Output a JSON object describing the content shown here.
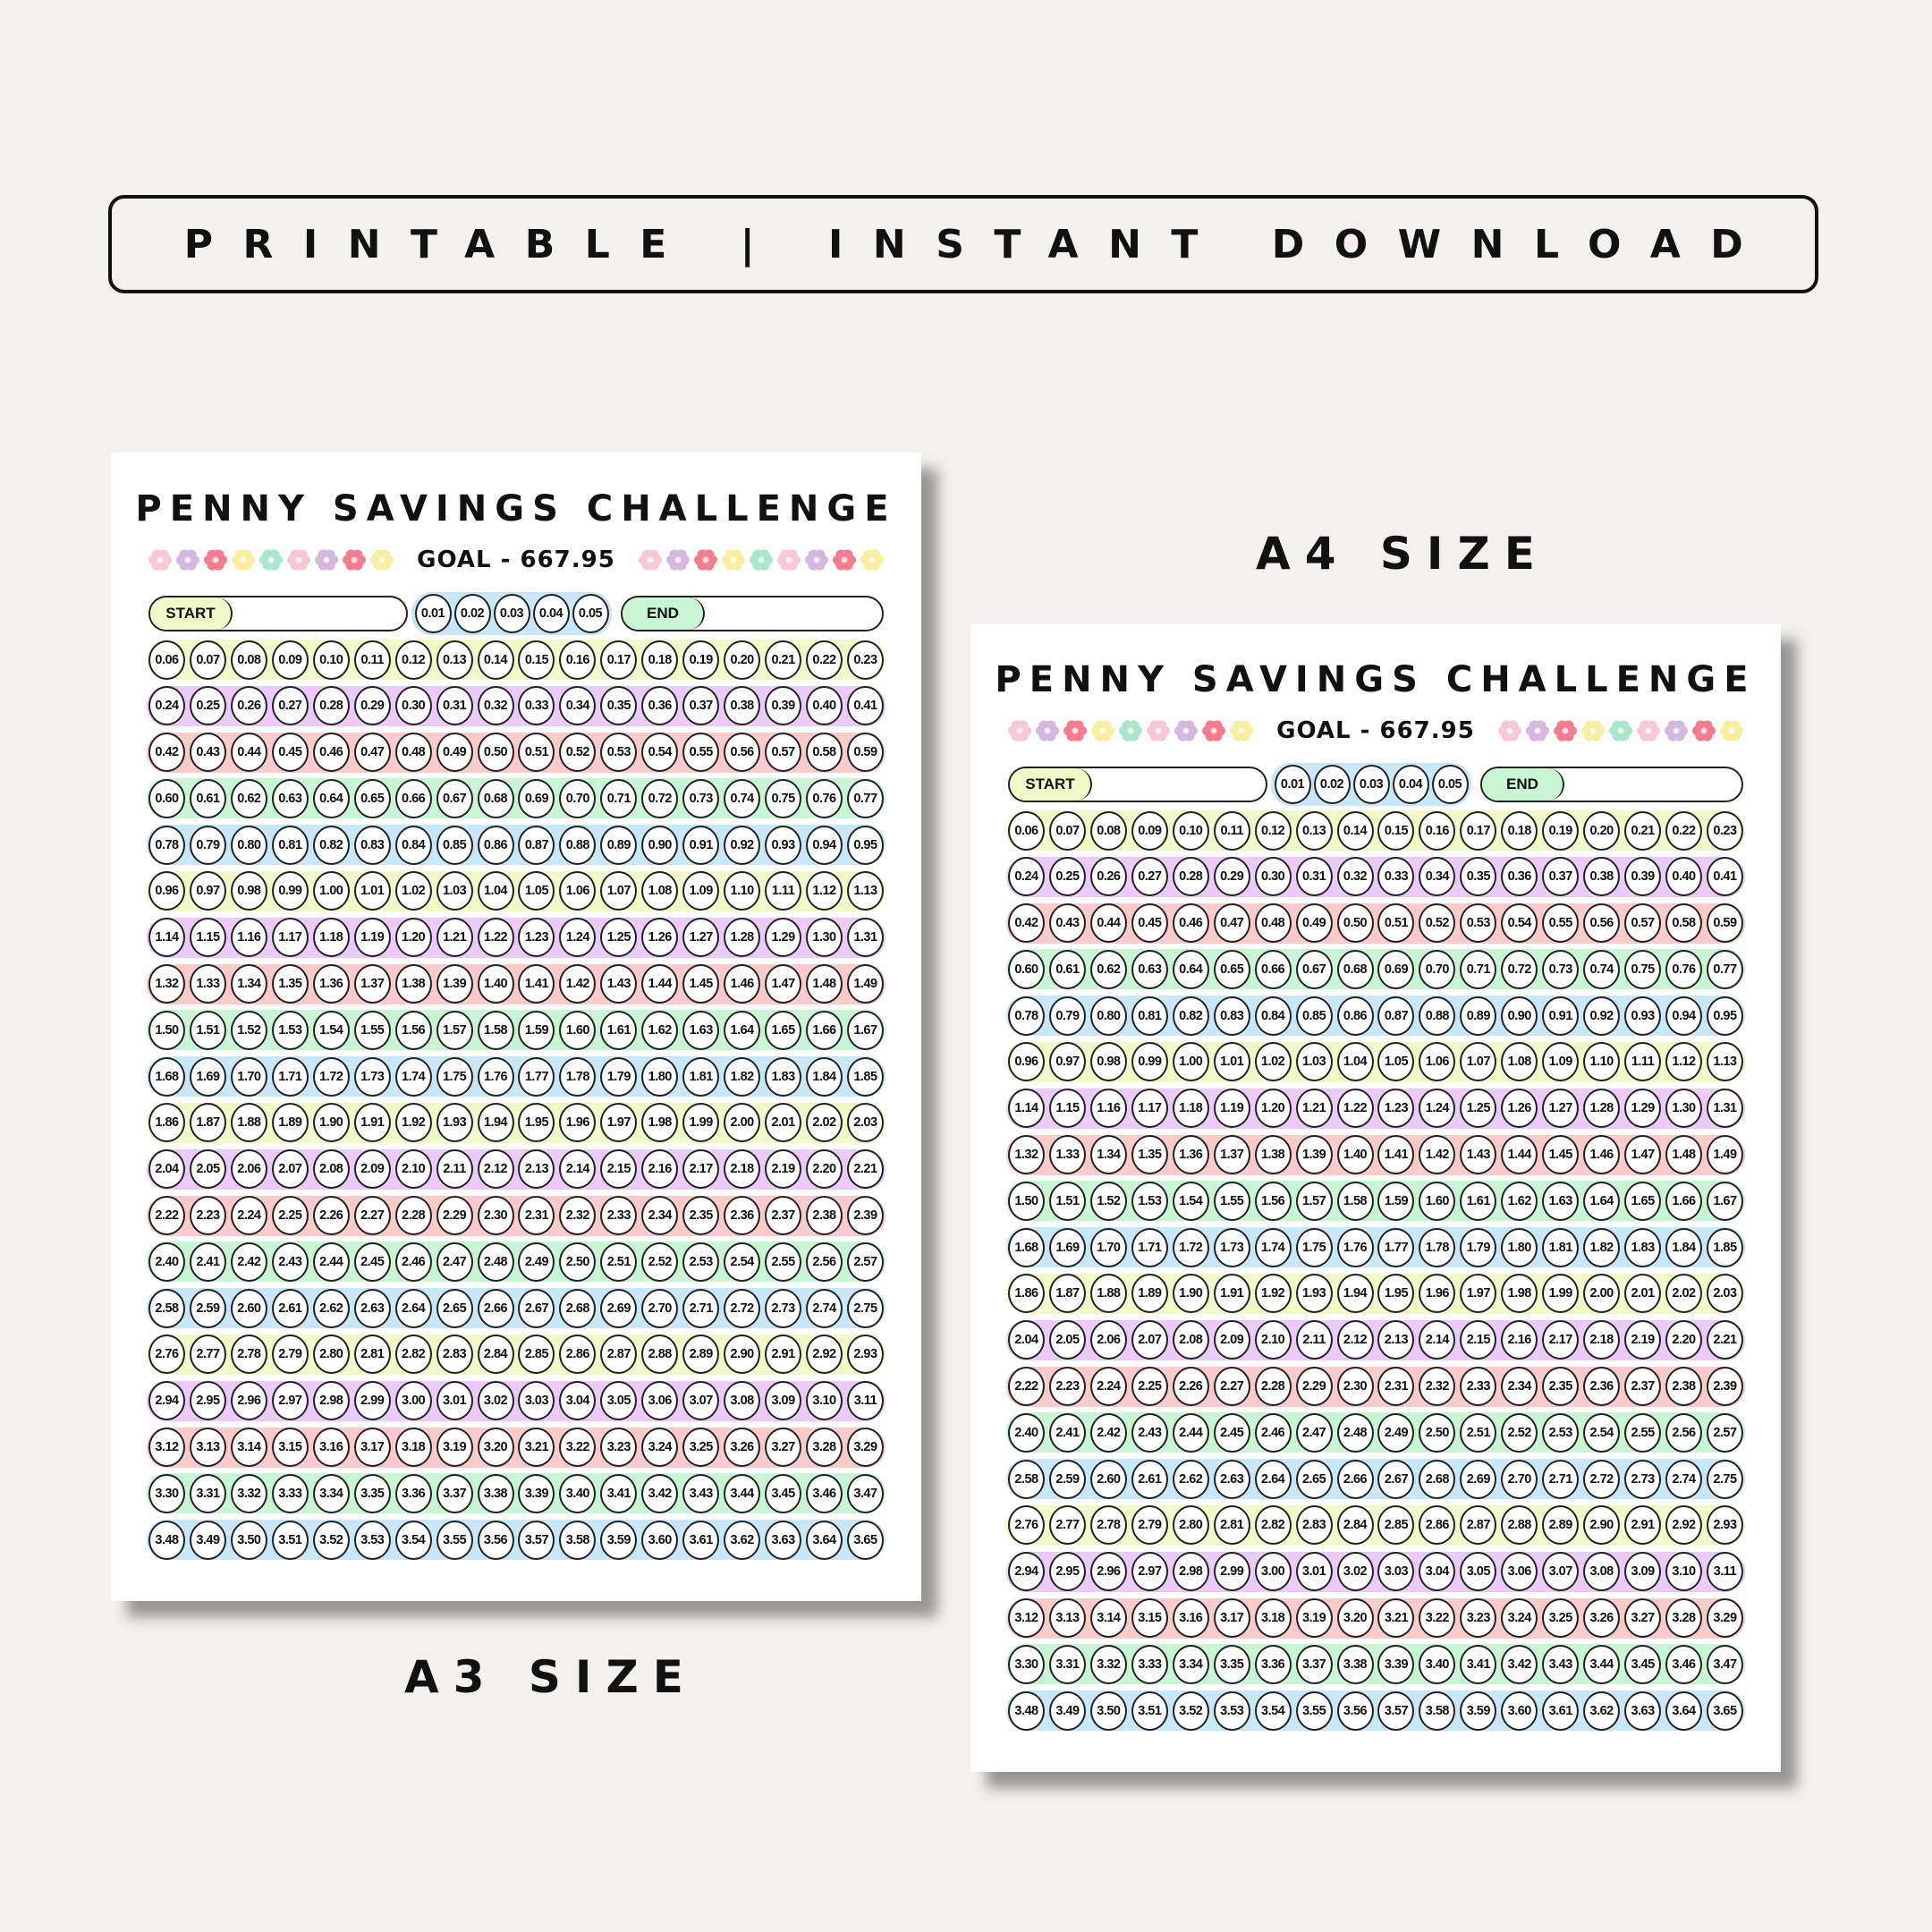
{
  "banner": {
    "text": "PRINTABLE | INSTANT DOWNLOAD"
  },
  "labels": {
    "a4": "A4 SIZE",
    "a3": "A3 SIZE"
  },
  "sheet": {
    "title": "PENNY SAVINGS CHALLENGE",
    "goal": "GOAL - 667.95",
    "start_label": "START",
    "end_label": "END",
    "first_row": [
      "0.01",
      "0.02",
      "0.03",
      "0.04",
      "0.05"
    ],
    "flower_colors": [
      "#f8c8d4",
      "#d4b8e0",
      "#f47c8c",
      "#f8f0a0",
      "#a8e8c8",
      "#f8c8d4",
      "#d4b8e0",
      "#f47c8c",
      "#f8f0a0"
    ],
    "strip_colors": [
      "#f0fac8",
      "#eccbfa",
      "#fbcaca",
      "#c8f5d4",
      "#c8e8fa"
    ],
    "start_color": "#f0fac8",
    "end_color": "#c8f5d4",
    "rows": [
      [
        "0.06",
        "0.07",
        "0.08",
        "0.09",
        "0.10",
        "0.11",
        "0.12",
        "0.13",
        "0.14",
        "0.15",
        "0.16",
        "0.17",
        "0.18",
        "0.19",
        "0.20",
        "0.21",
        "0.22",
        "0.23"
      ],
      [
        "0.24",
        "0.25",
        "0.26",
        "0.27",
        "0.28",
        "0.29",
        "0.30",
        "0.31",
        "0.32",
        "0.33",
        "0.34",
        "0.35",
        "0.36",
        "0.37",
        "0.38",
        "0.39",
        "0.40",
        "0.41"
      ],
      [
        "0.42",
        "0.43",
        "0.44",
        "0.45",
        "0.46",
        "0.47",
        "0.48",
        "0.49",
        "0.50",
        "0.51",
        "0.52",
        "0.53",
        "0.54",
        "0.55",
        "0.56",
        "0.57",
        "0.58",
        "0.59"
      ],
      [
        "0.60",
        "0.61",
        "0.62",
        "0.63",
        "0.64",
        "0.65",
        "0.66",
        "0.67",
        "0.68",
        "0.69",
        "0.70",
        "0.71",
        "0.72",
        "0.73",
        "0.74",
        "0.75",
        "0.76",
        "0.77"
      ],
      [
        "0.78",
        "0.79",
        "0.80",
        "0.81",
        "0.82",
        "0.83",
        "0.84",
        "0.85",
        "0.86",
        "0.87",
        "0.88",
        "0.89",
        "0.90",
        "0.91",
        "0.92",
        "0.93",
        "0.94",
        "0.95"
      ],
      [
        "0.96",
        "0.97",
        "0.98",
        "0.99",
        "1.00",
        "1.01",
        "1.02",
        "1.03",
        "1.04",
        "1.05",
        "1.06",
        "1.07",
        "1.08",
        "1.09",
        "1.10",
        "1.11",
        "1.12",
        "1.13"
      ],
      [
        "1.14",
        "1.15",
        "1.16",
        "1.17",
        "1.18",
        "1.19",
        "1.20",
        "1.21",
        "1.22",
        "1.23",
        "1.24",
        "1.25",
        "1.26",
        "1.27",
        "1.28",
        "1.29",
        "1.30",
        "1.31"
      ],
      [
        "1.32",
        "1.33",
        "1.34",
        "1.35",
        "1.36",
        "1.37",
        "1.38",
        "1.39",
        "1.40",
        "1.41",
        "1.42",
        "1.43",
        "1.44",
        "1.45",
        "1.46",
        "1.47",
        "1.48",
        "1.49"
      ],
      [
        "1.50",
        "1.51",
        "1.52",
        "1.53",
        "1.54",
        "1.55",
        "1.56",
        "1.57",
        "1.58",
        "1.59",
        "1.60",
        "1.61",
        "1.62",
        "1.63",
        "1.64",
        "1.65",
        "1.66",
        "1.67"
      ],
      [
        "1.68",
        "1.69",
        "1.70",
        "1.71",
        "1.72",
        "1.73",
        "1.74",
        "1.75",
        "1.76",
        "1.77",
        "1.78",
        "1.79",
        "1.80",
        "1.81",
        "1.82",
        "1.83",
        "1.84",
        "1.85"
      ],
      [
        "1.86",
        "1.87",
        "1.88",
        "1.89",
        "1.90",
        "1.91",
        "1.92",
        "1.93",
        "1.94",
        "1.95",
        "1.96",
        "1.97",
        "1.98",
        "1.99",
        "2.00",
        "2.01",
        "2.02",
        "2.03"
      ],
      [
        "2.04",
        "2.05",
        "2.06",
        "2.07",
        "2.08",
        "2.09",
        "2.10",
        "2.11",
        "2.12",
        "2.13",
        "2.14",
        "2.15",
        "2.16",
        "2.17",
        "2.18",
        "2.19",
        "2.20",
        "2.21"
      ],
      [
        "2.22",
        "2.23",
        "2.24",
        "2.25",
        "2.26",
        "2.27",
        "2.28",
        "2.29",
        "2.30",
        "2.31",
        "2.32",
        "2.33",
        "2.34",
        "2.35",
        "2.36",
        "2.37",
        "2.38",
        "2.39"
      ],
      [
        "2.40",
        "2.41",
        "2.42",
        "2.43",
        "2.44",
        "2.45",
        "2.46",
        "2.47",
        "2.48",
        "2.49",
        "2.50",
        "2.51",
        "2.52",
        "2.53",
        "2.54",
        "2.55",
        "2.56",
        "2.57"
      ],
      [
        "2.58",
        "2.59",
        "2.60",
        "2.61",
        "2.62",
        "2.63",
        "2.64",
        "2.65",
        "2.66",
        "2.67",
        "2.68",
        "2.69",
        "2.70",
        "2.71",
        "2.72",
        "2.73",
        "2.74",
        "2.75"
      ],
      [
        "2.76",
        "2.77",
        "2.78",
        "2.79",
        "2.80",
        "2.81",
        "2.82",
        "2.83",
        "2.84",
        "2.85",
        "2.86",
        "2.87",
        "2.88",
        "2.89",
        "2.90",
        "2.91",
        "2.92",
        "2.93"
      ],
      [
        "2.94",
        "2.95",
        "2.96",
        "2.97",
        "2.98",
        "2.99",
        "3.00",
        "3.01",
        "3.02",
        "3.03",
        "3.04",
        "3.05",
        "3.06",
        "3.07",
        "3.08",
        "3.09",
        "3.10",
        "3.11"
      ],
      [
        "3.12",
        "3.13",
        "3.14",
        "3.15",
        "3.16",
        "3.17",
        "3.18",
        "3.19",
        "3.20",
        "3.21",
        "3.22",
        "3.23",
        "3.24",
        "3.25",
        "3.26",
        "3.27",
        "3.28",
        "3.29"
      ],
      [
        "3.30",
        "3.31",
        "3.32",
        "3.33",
        "3.34",
        "3.35",
        "3.36",
        "3.37",
        "3.38",
        "3.39",
        "3.40",
        "3.41",
        "3.42",
        "3.43",
        "3.44",
        "3.45",
        "3.46",
        "3.47"
      ],
      [
        "3.48",
        "3.49",
        "3.50",
        "3.51",
        "3.52",
        "3.53",
        "3.54",
        "3.55",
        "3.56",
        "3.57",
        "3.58",
        "3.59",
        "3.60",
        "3.61",
        "3.62",
        "3.63",
        "3.64",
        "3.65"
      ]
    ]
  }
}
